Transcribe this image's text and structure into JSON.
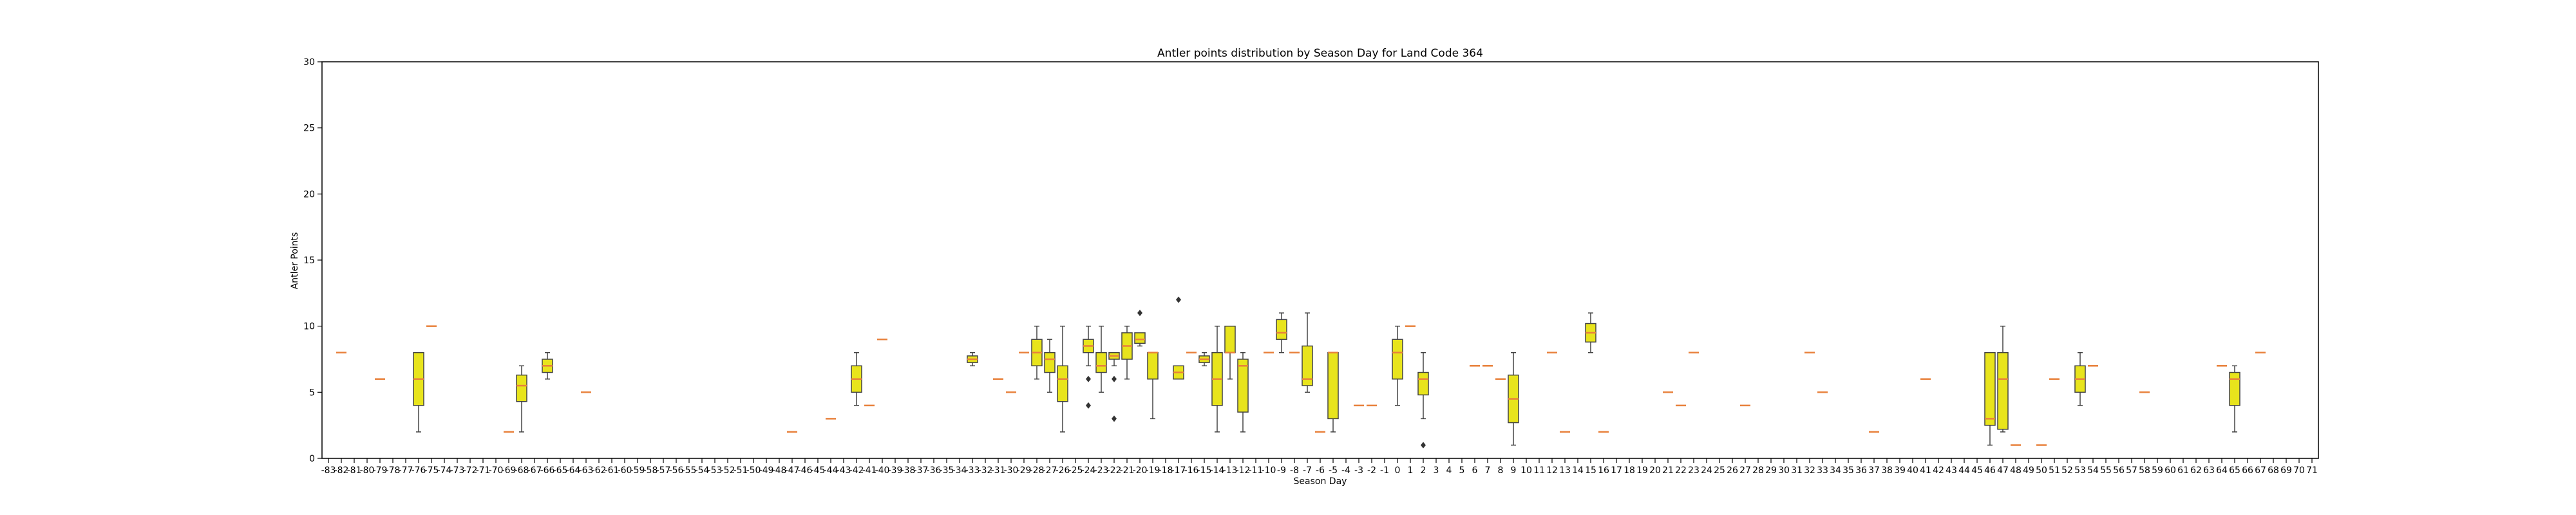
{
  "chart_data": {
    "type": "box",
    "title": "Antler points distribution by Season Day for Land Code 364",
    "xlabel": "Season Day",
    "ylabel": "Antler Points",
    "ylim": [
      0,
      30
    ],
    "yticks": [
      0,
      5,
      10,
      15,
      20,
      25,
      30
    ],
    "x_range": [
      -83,
      71
    ],
    "grid": false,
    "colors": {
      "box_fill": "#e8e41c",
      "median": "#e8813c",
      "whisker": "#444444",
      "frame": "#000000"
    },
    "boxes": [
      {
        "day": -82,
        "q1": 8,
        "median": 8,
        "q3": 8,
        "lo": 8,
        "hi": 8
      },
      {
        "day": -79,
        "q1": 6,
        "median": 6,
        "q3": 6,
        "lo": 6,
        "hi": 6
      },
      {
        "day": -76,
        "q1": 4,
        "median": 6,
        "q3": 8,
        "lo": 2,
        "hi": 8
      },
      {
        "day": -75,
        "q1": 10,
        "median": 10,
        "q3": 10,
        "lo": 10,
        "hi": 10
      },
      {
        "day": -69,
        "q1": 2,
        "median": 2,
        "q3": 2,
        "lo": 2,
        "hi": 2
      },
      {
        "day": -68,
        "q1": 4.3,
        "median": 5.5,
        "q3": 6.3,
        "lo": 2,
        "hi": 7
      },
      {
        "day": -66,
        "q1": 6.5,
        "median": 7,
        "q3": 7.5,
        "lo": 6,
        "hi": 8
      },
      {
        "day": -63,
        "q1": 5,
        "median": 5,
        "q3": 5,
        "lo": 5,
        "hi": 5
      },
      {
        "day": -47,
        "q1": 2,
        "median": 2,
        "q3": 2,
        "lo": 2,
        "hi": 2
      },
      {
        "day": -44,
        "q1": 3,
        "median": 3,
        "q3": 3,
        "lo": 3,
        "hi": 3
      },
      {
        "day": -42,
        "q1": 5,
        "median": 6,
        "q3": 7,
        "lo": 4,
        "hi": 8
      },
      {
        "day": -41,
        "q1": 4,
        "median": 4,
        "q3": 4,
        "lo": 4,
        "hi": 4
      },
      {
        "day": -40,
        "q1": 9,
        "median": 9,
        "q3": 9,
        "lo": 9,
        "hi": 9
      },
      {
        "day": -33,
        "q1": 7.25,
        "median": 7.5,
        "q3": 7.75,
        "lo": 7,
        "hi": 8
      },
      {
        "day": -31,
        "q1": 6,
        "median": 6,
        "q3": 6,
        "lo": 6,
        "hi": 6
      },
      {
        "day": -30,
        "q1": 5,
        "median": 5,
        "q3": 5,
        "lo": 5,
        "hi": 5
      },
      {
        "day": -29,
        "q1": 8,
        "median": 8,
        "q3": 8,
        "lo": 8,
        "hi": 8
      },
      {
        "day": -28,
        "q1": 7,
        "median": 8,
        "q3": 9,
        "lo": 6,
        "hi": 10
      },
      {
        "day": -27,
        "q1": 6.5,
        "median": 7.5,
        "q3": 8,
        "lo": 5,
        "hi": 9
      },
      {
        "day": -26,
        "q1": 4.3,
        "median": 6,
        "q3": 7,
        "lo": 2,
        "hi": 10
      },
      {
        "day": -24,
        "q1": 8,
        "median": 8.5,
        "q3": 9,
        "lo": 7,
        "hi": 10,
        "outliers": [
          6,
          4
        ]
      },
      {
        "day": -23,
        "q1": 6.5,
        "median": 7,
        "q3": 8,
        "lo": 5,
        "hi": 10
      },
      {
        "day": -22,
        "q1": 7.5,
        "median": 7.75,
        "q3": 8,
        "lo": 7,
        "hi": 8,
        "outliers": [
          6,
          3
        ]
      },
      {
        "day": -21,
        "q1": 7.5,
        "median": 8.5,
        "q3": 9.5,
        "lo": 6,
        "hi": 10
      },
      {
        "day": -20,
        "q1": 8.7,
        "median": 9,
        "q3": 9.5,
        "lo": 8.5,
        "hi": 9.5,
        "outliers": [
          11
        ]
      },
      {
        "day": -19,
        "q1": 6,
        "median": 8,
        "q3": 8,
        "lo": 3,
        "hi": 8
      },
      {
        "day": -17,
        "q1": 6,
        "median": 6.5,
        "q3": 7,
        "lo": 6,
        "hi": 7,
        "outliers": [
          12
        ]
      },
      {
        "day": -16,
        "q1": 8,
        "median": 8,
        "q3": 8,
        "lo": 8,
        "hi": 8
      },
      {
        "day": -15,
        "q1": 7.25,
        "median": 7.5,
        "q3": 7.75,
        "lo": 7,
        "hi": 8
      },
      {
        "day": -14,
        "q1": 4,
        "median": 6,
        "q3": 8,
        "lo": 2,
        "hi": 10
      },
      {
        "day": -13,
        "q1": 8,
        "median": 8,
        "q3": 10,
        "lo": 6,
        "hi": 10
      },
      {
        "day": -12,
        "q1": 3.5,
        "median": 7,
        "q3": 7.5,
        "lo": 2,
        "hi": 8
      },
      {
        "day": -10,
        "q1": 8,
        "median": 8,
        "q3": 8,
        "lo": 8,
        "hi": 8
      },
      {
        "day": -9,
        "q1": 9,
        "median": 9.5,
        "q3": 10.5,
        "lo": 8,
        "hi": 11
      },
      {
        "day": -8,
        "q1": 8,
        "median": 8,
        "q3": 8,
        "lo": 8,
        "hi": 8
      },
      {
        "day": -7,
        "q1": 5.5,
        "median": 6,
        "q3": 8.5,
        "lo": 5,
        "hi": 11
      },
      {
        "day": -6,
        "q1": 2,
        "median": 2,
        "q3": 2,
        "lo": 2,
        "hi": 2
      },
      {
        "day": -5,
        "q1": 3,
        "median": 8,
        "q3": 8,
        "lo": 2,
        "hi": 8
      },
      {
        "day": -3,
        "q1": 4,
        "median": 4,
        "q3": 4,
        "lo": 4,
        "hi": 4
      },
      {
        "day": -2,
        "q1": 4,
        "median": 4,
        "q3": 4,
        "lo": 4,
        "hi": 4
      },
      {
        "day": 0,
        "q1": 6,
        "median": 8,
        "q3": 9,
        "lo": 4,
        "hi": 10
      },
      {
        "day": 1,
        "q1": 10,
        "median": 10,
        "q3": 10,
        "lo": 10,
        "hi": 10
      },
      {
        "day": 2,
        "q1": 4.8,
        "median": 6,
        "q3": 6.5,
        "lo": 3,
        "hi": 8,
        "outliers": [
          1
        ]
      },
      {
        "day": 6,
        "q1": 7,
        "median": 7,
        "q3": 7,
        "lo": 7,
        "hi": 7
      },
      {
        "day": 7,
        "q1": 7,
        "median": 7,
        "q3": 7,
        "lo": 7,
        "hi": 7
      },
      {
        "day": 8,
        "q1": 6,
        "median": 6,
        "q3": 6,
        "lo": 6,
        "hi": 6
      },
      {
        "day": 9,
        "q1": 2.7,
        "median": 4.5,
        "q3": 6.3,
        "lo": 1,
        "hi": 8
      },
      {
        "day": 12,
        "q1": 8,
        "median": 8,
        "q3": 8,
        "lo": 8,
        "hi": 8
      },
      {
        "day": 13,
        "q1": 2,
        "median": 2,
        "q3": 2,
        "lo": 2,
        "hi": 2
      },
      {
        "day": 15,
        "q1": 8.8,
        "median": 9.5,
        "q3": 10.2,
        "lo": 8,
        "hi": 11
      },
      {
        "day": 16,
        "q1": 2,
        "median": 2,
        "q3": 2,
        "lo": 2,
        "hi": 2
      },
      {
        "day": 21,
        "q1": 5,
        "median": 5,
        "q3": 5,
        "lo": 5,
        "hi": 5
      },
      {
        "day": 22,
        "q1": 4,
        "median": 4,
        "q3": 4,
        "lo": 4,
        "hi": 4
      },
      {
        "day": 23,
        "q1": 8,
        "median": 8,
        "q3": 8,
        "lo": 8,
        "hi": 8
      },
      {
        "day": 27,
        "q1": 4,
        "median": 4,
        "q3": 4,
        "lo": 4,
        "hi": 4
      },
      {
        "day": 32,
        "q1": 8,
        "median": 8,
        "q3": 8,
        "lo": 8,
        "hi": 8
      },
      {
        "day": 33,
        "q1": 5,
        "median": 5,
        "q3": 5,
        "lo": 5,
        "hi": 5
      },
      {
        "day": 37,
        "q1": 2,
        "median": 2,
        "q3": 2,
        "lo": 2,
        "hi": 2
      },
      {
        "day": 41,
        "q1": 6,
        "median": 6,
        "q3": 6,
        "lo": 6,
        "hi": 6
      },
      {
        "day": 46,
        "q1": 2.5,
        "median": 3,
        "q3": 8,
        "lo": 1,
        "hi": 8
      },
      {
        "day": 47,
        "q1": 2.2,
        "median": 6,
        "q3": 8,
        "lo": 2,
        "hi": 10
      },
      {
        "day": 48,
        "q1": 1,
        "median": 1,
        "q3": 1,
        "lo": 1,
        "hi": 1
      },
      {
        "day": 50,
        "q1": 1,
        "median": 1,
        "q3": 1,
        "lo": 1,
        "hi": 1
      },
      {
        "day": 51,
        "q1": 6,
        "median": 6,
        "q3": 6,
        "lo": 6,
        "hi": 6
      },
      {
        "day": 53,
        "q1": 5,
        "median": 6,
        "q3": 7,
        "lo": 4,
        "hi": 8
      },
      {
        "day": 54,
        "q1": 7,
        "median": 7,
        "q3": 7,
        "lo": 7,
        "hi": 7
      },
      {
        "day": 58,
        "q1": 5,
        "median": 5,
        "q3": 5,
        "lo": 5,
        "hi": 5
      },
      {
        "day": 64,
        "q1": 7,
        "median": 7,
        "q3": 7,
        "lo": 7,
        "hi": 7
      },
      {
        "day": 65,
        "q1": 4,
        "median": 6,
        "q3": 6.5,
        "lo": 2,
        "hi": 7
      },
      {
        "day": 67,
        "q1": 8,
        "median": 8,
        "q3": 8,
        "lo": 8,
        "hi": 8
      }
    ]
  }
}
